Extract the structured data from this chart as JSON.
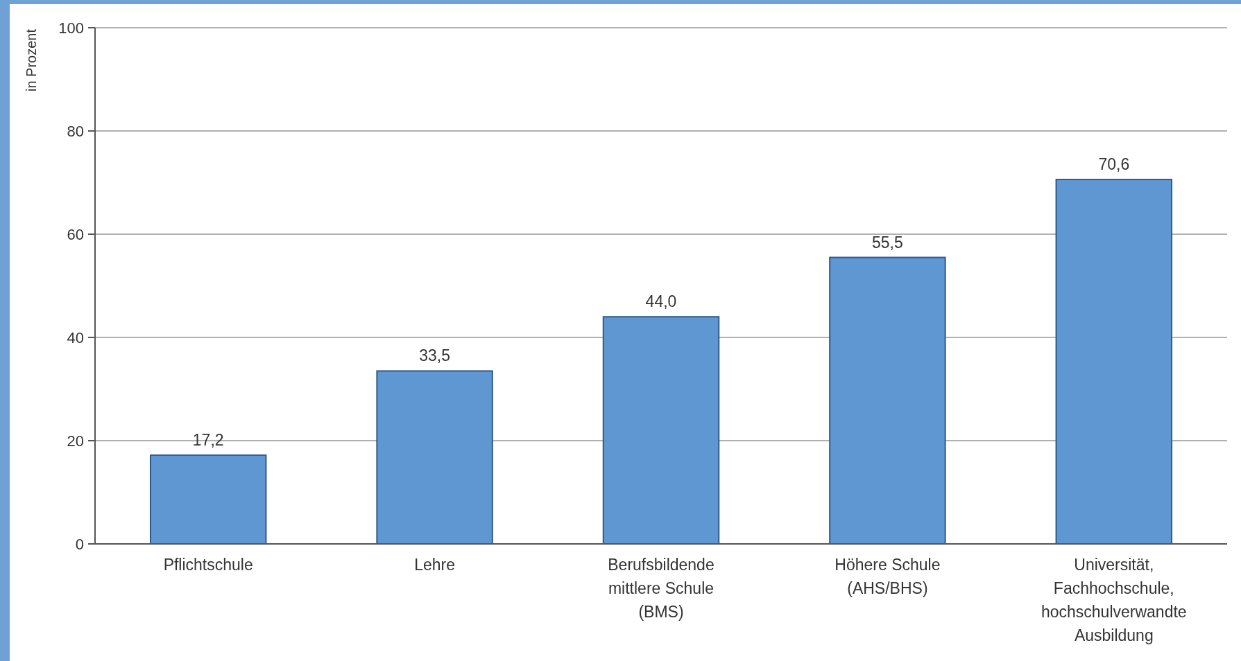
{
  "chart_data": {
    "type": "bar",
    "ylabel": "in Prozent",
    "categories": [
      "Pflichtschule",
      "Lehre",
      "Berufsbildende mittlere Schule (BMS)",
      "Höhere Schule (AHS/BHS)",
      "Universität, Fachhochschule, hochschulverwandte Ausbildung"
    ],
    "values": [
      17.2,
      33.5,
      44.0,
      55.5,
      70.6
    ],
    "value_labels": [
      "17,2",
      "33,5",
      "44,0",
      "55,5",
      "70,6"
    ],
    "color": "#5f97d3",
    "ylim": [
      0,
      100
    ],
    "yticks": [
      0,
      20,
      40,
      60,
      80,
      100
    ],
    "grid": "y"
  }
}
